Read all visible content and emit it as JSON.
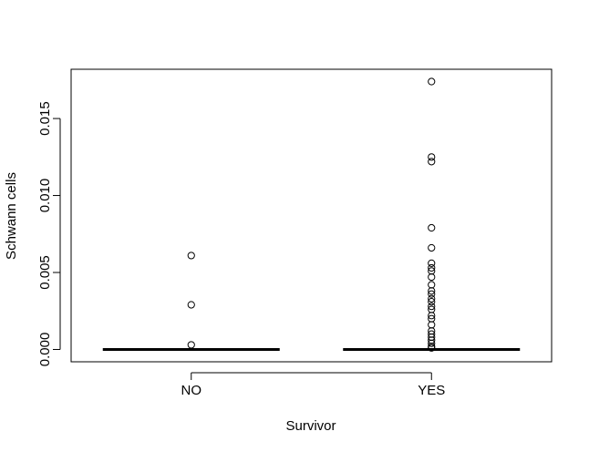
{
  "chart_data": {
    "type": "boxplot",
    "xlabel": "Survivor",
    "ylabel": "Schwann cells",
    "categories": [
      "NO",
      "YES"
    ],
    "ylim": [
      -0.0008,
      0.0182
    ],
    "yticks": [
      0.0,
      0.005,
      0.01,
      0.015
    ],
    "ytick_labels": [
      "0.000",
      "0.005",
      "0.010",
      "0.015"
    ],
    "grid": false,
    "groups": [
      {
        "name": "NO",
        "box": {
          "min": 0.0,
          "q1": 0.0,
          "median": 0.0,
          "q3": 0.0,
          "max": 0.0
        },
        "outliers": [
          0.0061,
          0.0029,
          0.0003
        ]
      },
      {
        "name": "YES",
        "box": {
          "min": 0.0,
          "q1": 0.0,
          "median": 0.0,
          "q3": 0.0,
          "max": 0.0
        },
        "outliers": [
          0.0174,
          0.0125,
          0.0122,
          0.0079,
          0.0066,
          0.0056,
          0.0053,
          0.0051,
          0.0047,
          0.0042,
          0.0038,
          0.0036,
          0.0033,
          0.0031,
          0.0028,
          0.0026,
          0.0022,
          0.002,
          0.0016,
          0.0012,
          0.001,
          0.0008,
          0.0006,
          0.0004,
          0.0002,
          0.0001
        ]
      }
    ]
  }
}
